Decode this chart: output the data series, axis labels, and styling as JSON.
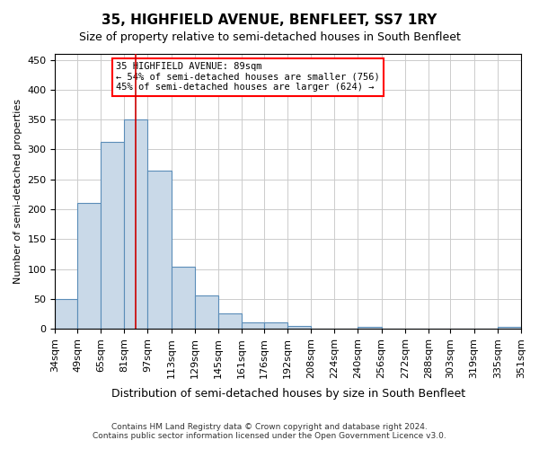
{
  "title": "35, HIGHFIELD AVENUE, BENFLEET, SS7 1RY",
  "subtitle": "Size of property relative to semi-detached houses in South Benfleet",
  "xlabel": "Distribution of semi-detached houses by size in South Benfleet",
  "ylabel": "Number of semi-detached properties",
  "footer_line1": "Contains HM Land Registry data © Crown copyright and database right 2024.",
  "footer_line2": "Contains public sector information licensed under the Open Government Licence v3.0.",
  "annotation_title": "35 HIGHFIELD AVENUE: 89sqm",
  "annotation_line1": "← 54% of semi-detached houses are smaller (756)",
  "annotation_line2": "45% of semi-detached houses are larger (624) →",
  "subject_sqm": 89,
  "bin_edges": [
    34,
    49,
    65,
    81,
    97,
    113,
    129,
    145,
    161,
    176,
    192,
    208,
    224,
    240,
    256,
    272,
    288,
    303,
    319,
    335,
    351
  ],
  "bar_heights": [
    50,
    210,
    312,
    350,
    265,
    104,
    55,
    25,
    10,
    10,
    5,
    0,
    0,
    3,
    0,
    0,
    0,
    0,
    0,
    3
  ],
  "bar_facecolor": "#c9d9e8",
  "bar_edgecolor": "#5b8db8",
  "vline_color": "#cc0000",
  "grid_color": "#cccccc",
  "background_color": "#ffffff",
  "ylim": [
    0,
    460
  ],
  "xlim": [
    34,
    351
  ]
}
